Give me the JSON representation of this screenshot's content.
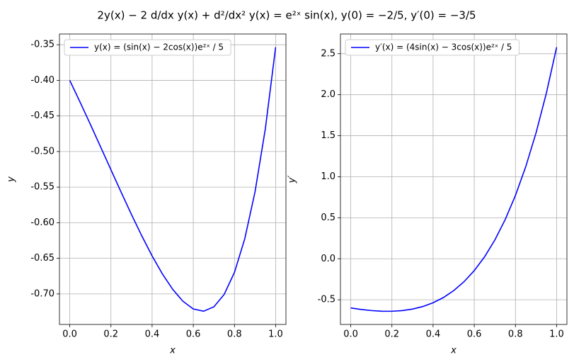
{
  "title": "2y(x) − 2 d/dx y(x) + d²/dx² y(x) = e²ˣ sin(x), y(0) = −2/5, y′(0) = −3/5",
  "chart_data": [
    {
      "type": "line",
      "xlabel": "x",
      "ylabel": "y",
      "grid": true,
      "legend": "upper left",
      "x": [
        0,
        0.05,
        0.1,
        0.15,
        0.2,
        0.25,
        0.3,
        0.35,
        0.4,
        0.45,
        0.5,
        0.55,
        0.6,
        0.65,
        0.7,
        0.75,
        0.8,
        0.85,
        0.9,
        0.95,
        1.0
      ],
      "series": [
        {
          "name": "y(x) = (sin(x) − 2cos(x))e²ˣ / 5",
          "color": "#0000ff",
          "values": [
            -0.4,
            -0.43047,
            -0.46173,
            -0.49354,
            -0.52556,
            -0.55741,
            -0.5886,
            -0.61856,
            -0.64661,
            -0.67193,
            -0.69356,
            -0.7104,
            -0.72115,
            -0.72431,
            -0.71815,
            -0.7007,
            -0.66971,
            -0.62259,
            -0.55644,
            -0.46795,
            -0.35339
          ]
        }
      ],
      "xlim": [
        -0.05,
        1.05
      ],
      "ylim": [
        -0.7429,
        -0.3349
      ],
      "xticks": [
        {
          "value": 0,
          "label": "0.0"
        },
        {
          "value": 0.2,
          "label": "0.2"
        },
        {
          "value": 0.4,
          "label": "0.4"
        },
        {
          "value": 0.6,
          "label": "0.6"
        },
        {
          "value": 0.8,
          "label": "0.8"
        },
        {
          "value": 1.0,
          "label": "1.0"
        }
      ],
      "yticks": [
        {
          "value": -0.7,
          "label": "-0.70"
        },
        {
          "value": -0.65,
          "label": "-0.65"
        },
        {
          "value": -0.6,
          "label": "-0.60"
        },
        {
          "value": -0.55,
          "label": "-0.55"
        },
        {
          "value": -0.5,
          "label": "-0.50"
        },
        {
          "value": -0.45,
          "label": "-0.45"
        },
        {
          "value": -0.4,
          "label": "-0.40"
        },
        {
          "value": -0.35,
          "label": "-0.35"
        }
      ]
    },
    {
      "type": "line",
      "xlabel": "x",
      "ylabel": "y′",
      "grid": true,
      "legend": "upper left",
      "x": [
        0,
        0.05,
        0.1,
        0.15,
        0.2,
        0.25,
        0.3,
        0.35,
        0.4,
        0.45,
        0.5,
        0.55,
        0.6,
        0.65,
        0.7,
        0.75,
        0.8,
        0.85,
        0.9,
        0.95,
        1.0
      ],
      "series": [
        {
          "name": "y′(x) = (4sin(x) − 3cos(x))e²ˣ / 5",
          "color": "#0000ff",
          "values": [
            -0.6,
            -0.61808,
            -0.63163,
            -0.63945,
            -0.64015,
            -0.63216,
            -0.61366,
            -0.58259,
            -0.53658,
            -0.47297,
            -0.38874,
            -0.28049,
            -0.14439,
            0.02384,
            0.22899,
            0.47639,
            0.77198,
            1.12235,
            1.53477,
            2.01729,
            2.57875
          ]
        }
      ],
      "xlim": [
        -0.05,
        1.05
      ],
      "ylim": [
        -0.801,
        2.74
      ],
      "xticks": [
        {
          "value": 0,
          "label": "0.0"
        },
        {
          "value": 0.2,
          "label": "0.2"
        },
        {
          "value": 0.4,
          "label": "0.4"
        },
        {
          "value": 0.6,
          "label": "0.6"
        },
        {
          "value": 0.8,
          "label": "0.8"
        },
        {
          "value": 1.0,
          "label": "1.0"
        }
      ],
      "yticks": [
        {
          "value": -0.5,
          "label": "-0.5"
        },
        {
          "value": 0,
          "label": "0.0"
        },
        {
          "value": 0.5,
          "label": "0.5"
        },
        {
          "value": 1.0,
          "label": "1.0"
        },
        {
          "value": 1.5,
          "label": "1.5"
        },
        {
          "value": 2.0,
          "label": "2.0"
        },
        {
          "value": 2.5,
          "label": "2.5"
        }
      ]
    }
  ]
}
